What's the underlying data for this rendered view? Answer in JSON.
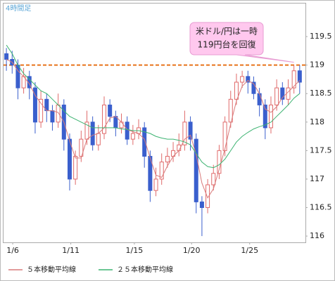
{
  "chart_data": {
    "type": "candlestick",
    "timeframe_label": "4時間足",
    "annotation": [
      "米ドル/円は一時",
      "119円台を回復"
    ],
    "reference_line": {
      "value": 119,
      "color": "#e8731a"
    },
    "up_color": "#e06a6a",
    "down_color": "#3a5fcd",
    "x": [
      0,
      2,
      4,
      6,
      8,
      10,
      12,
      14,
      16,
      18,
      20,
      22,
      24,
      26,
      28,
      30,
      32,
      34,
      36,
      38,
      40,
      42,
      44,
      46,
      48,
      50,
      52,
      54,
      56,
      58,
      60,
      62,
      64,
      66,
      68,
      70,
      72,
      74,
      76,
      78,
      80,
      82,
      84,
      86,
      88,
      90,
      92,
      94,
      96,
      98,
      100,
      102
    ],
    "open": [
      119.2,
      119.1,
      119.0,
      118.6,
      118.8,
      118.6,
      118.0,
      118.4,
      118.2,
      118.0,
      118.3,
      117.7,
      117.0,
      117.4,
      117.7,
      118.0,
      117.6,
      117.8,
      118.3,
      118.1,
      117.9,
      118.0,
      117.7,
      117.8,
      117.9,
      117.4,
      116.8,
      117.0,
      117.3,
      117.4,
      117.5,
      117.6,
      118.0,
      117.7,
      116.6,
      116.5,
      116.9,
      117.1,
      117.5,
      118.0,
      118.4,
      118.7,
      118.8,
      118.7,
      118.5,
      118.3,
      117.9,
      118.3,
      118.6,
      118.4,
      118.6,
      118.9
    ],
    "high": [
      119.3,
      119.25,
      119.1,
      118.95,
      118.9,
      118.7,
      118.55,
      118.5,
      118.3,
      118.5,
      118.4,
      117.8,
      117.5,
      117.85,
      118.2,
      118.1,
      117.95,
      118.45,
      118.4,
      118.2,
      118.15,
      118.1,
      117.95,
      118.05,
      118.0,
      117.5,
      117.2,
      117.45,
      117.55,
      117.65,
      117.8,
      118.2,
      118.1,
      117.8,
      116.7,
      117.0,
      117.25,
      117.6,
      118.1,
      118.55,
      118.85,
      118.9,
      118.9,
      118.8,
      118.6,
      118.4,
      118.45,
      118.75,
      118.7,
      118.75,
      119.0,
      119.0
    ],
    "low": [
      118.9,
      118.85,
      118.4,
      118.5,
      118.4,
      117.8,
      117.9,
      118.0,
      117.85,
      117.9,
      117.5,
      116.8,
      116.9,
      117.3,
      117.6,
      117.5,
      117.5,
      117.7,
      118.0,
      117.75,
      117.8,
      117.6,
      117.6,
      117.7,
      117.2,
      116.6,
      116.7,
      116.9,
      117.2,
      117.3,
      117.4,
      117.5,
      117.5,
      116.4,
      116.0,
      116.4,
      116.8,
      117.0,
      117.4,
      117.9,
      118.3,
      118.6,
      118.5,
      118.4,
      118.1,
      117.7,
      117.8,
      118.2,
      118.3,
      118.3,
      118.5,
      118.5
    ],
    "close": [
      119.1,
      119.0,
      118.6,
      118.8,
      118.6,
      118.0,
      118.4,
      118.2,
      118.0,
      118.3,
      117.7,
      117.0,
      117.4,
      117.7,
      118.0,
      117.6,
      117.8,
      118.3,
      118.1,
      117.9,
      118.0,
      117.7,
      117.8,
      117.9,
      117.4,
      116.8,
      117.0,
      117.3,
      117.4,
      117.5,
      117.6,
      118.0,
      117.7,
      116.6,
      116.5,
      116.9,
      117.1,
      117.5,
      118.0,
      118.4,
      118.7,
      118.8,
      118.7,
      118.5,
      118.3,
      117.9,
      118.3,
      118.6,
      118.4,
      118.6,
      118.9,
      118.7
    ],
    "series": [
      {
        "name": "５本移動平均線",
        "color": "#d97a7a",
        "values": [
          119.1,
          119.05,
          118.9,
          118.8,
          118.67,
          118.47,
          118.33,
          118.2,
          118.2,
          118.17,
          118.0,
          117.67,
          117.37,
          117.37,
          117.7,
          117.77,
          117.8,
          117.9,
          118.07,
          118.1,
          118.0,
          117.87,
          117.83,
          117.8,
          117.7,
          117.37,
          117.07,
          117.03,
          117.23,
          117.4,
          117.5,
          117.7,
          117.77,
          117.43,
          116.93,
          116.67,
          116.83,
          117.17,
          117.53,
          117.97,
          118.37,
          118.63,
          118.73,
          118.67,
          118.5,
          118.23,
          118.17,
          118.27,
          118.43,
          118.53,
          118.63,
          118.73
        ]
      },
      {
        "name": "２５本移動平均線",
        "color": "#3cb371",
        "values": [
          119.35,
          119.2,
          119.0,
          118.85,
          118.75,
          118.65,
          118.55,
          118.5,
          118.4,
          118.3,
          118.2,
          118.1,
          118.05,
          118.0,
          117.95,
          117.9,
          117.9,
          117.9,
          117.9,
          117.9,
          117.88,
          117.87,
          117.85,
          117.85,
          117.83,
          117.8,
          117.75,
          117.72,
          117.7,
          117.7,
          117.68,
          117.65,
          117.6,
          117.45,
          117.3,
          117.22,
          117.2,
          117.25,
          117.35,
          117.5,
          117.65,
          117.75,
          117.82,
          117.88,
          117.92,
          117.95,
          118.0,
          118.1,
          118.2,
          118.3,
          118.42,
          118.5
        ]
      }
    ],
    "xlim": [
      -1,
      104
    ],
    "xticks": [
      {
        "value": 2.2,
        "label": "1/6"
      },
      {
        "value": 22.4,
        "label": "1/11"
      },
      {
        "value": 44.5,
        "label": "1/15"
      },
      {
        "value": 64.4,
        "label": "1/20"
      },
      {
        "value": 84.6,
        "label": "1/25"
      }
    ],
    "ylim": [
      115.89,
      120.08
    ],
    "yticks": [
      116,
      116.5,
      117,
      117.5,
      118,
      118.5,
      119,
      119.5
    ]
  }
}
